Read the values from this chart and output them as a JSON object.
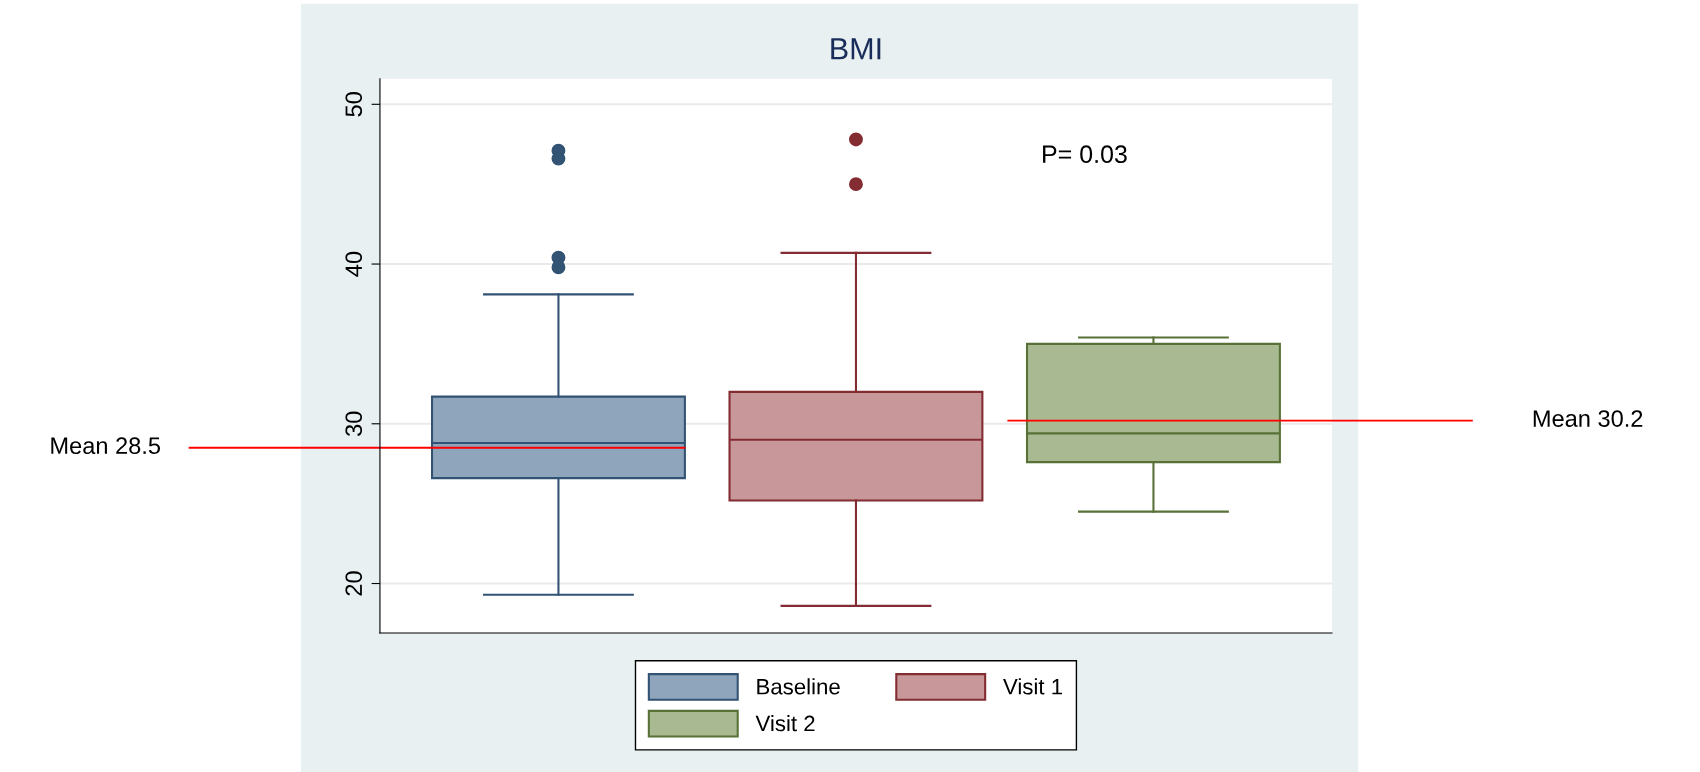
{
  "chart_data": {
    "type": "box",
    "title": "BMI",
    "categories": [
      null
    ],
    "series": [
      {
        "name": "Baseline",
        "color": "#8ea5bb",
        "boxes": [
          {
            "low": 19.3,
            "q1": 26.6,
            "median": 28.8,
            "q3": 31.7,
            "high": 38.1,
            "outliers": [
              47.1,
              46.6,
              40.4,
              39.8
            ]
          }
        ]
      },
      {
        "name": "Visit 1",
        "color": "#c8979a",
        "boxes": [
          {
            "low": 18.6,
            "q1": 25.2,
            "median": 29.0,
            "q3": 32.0,
            "high": 40.7,
            "outliers": [
              47.8,
              45.0
            ]
          }
        ]
      },
      {
        "name": "Visit 2",
        "color": "#a9ba93",
        "boxes": [
          {
            "low": 24.5,
            "q1": 27.6,
            "median": 29.4,
            "q3": 35.0,
            "high": 35.4
          }
        ]
      }
    ],
    "ylim": [
      16.9,
      51.6
    ],
    "yticks": [
      20,
      30,
      40,
      50
    ],
    "grid": "y",
    "legend": "bottom",
    "ref_lines": [
      {
        "axis": "y",
        "value": 28.5,
        "label": "Mean 28.5",
        "color": "#ff0000"
      },
      {
        "axis": "y",
        "value": 30.2,
        "label": "Mean 30.2",
        "color": "#ff0000"
      }
    ],
    "annotations": [
      "P= 0.03"
    ]
  }
}
